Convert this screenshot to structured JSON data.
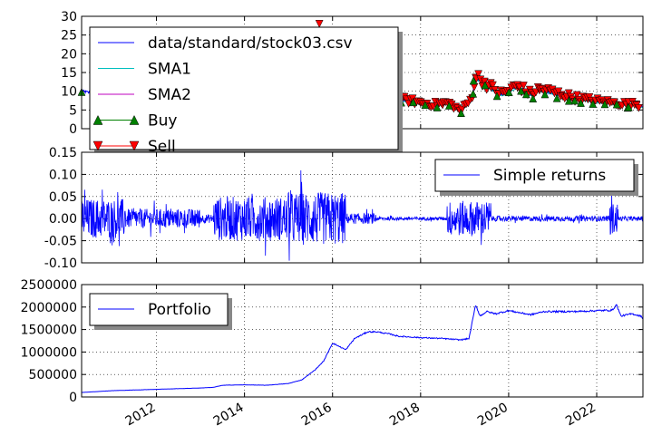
{
  "chart_data": [
    {
      "type": "line",
      "panel": "price",
      "ylim": [
        0,
        30
      ],
      "yticks": [
        "0",
        "5",
        "10",
        "15",
        "20",
        "25",
        "30"
      ],
      "grid": true,
      "legend_placement": "top-left",
      "colors": {
        "price": "#0000ff",
        "sma1": "#00bfbf",
        "sma2": "#bf00bf",
        "buy": "#008000",
        "sell": "#ff0000"
      },
      "series": [
        {
          "name": "data/standard/stock03.csv",
          "style": "line"
        },
        {
          "name": "SMA1",
          "style": "line"
        },
        {
          "name": "SMA2",
          "style": "line"
        },
        {
          "name": "Buy",
          "style": "triangle-up"
        },
        {
          "name": "Sell",
          "style": "triangle-down"
        }
      ],
      "price_points": [
        [
          2010.3,
          10.0
        ],
        [
          2010.5,
          9.6
        ],
        [
          2015.7,
          7.5
        ],
        [
          2016.0,
          7.6
        ],
        [
          2016.5,
          7.2
        ],
        [
          2017.0,
          8.0
        ],
        [
          2017.3,
          7.0
        ],
        [
          2017.6,
          7.5
        ],
        [
          2018.0,
          6.8
        ],
        [
          2018.3,
          6.2
        ],
        [
          2018.6,
          6.8
        ],
        [
          2018.8,
          5.5
        ],
        [
          2018.9,
          4.6
        ],
        [
          2019.0,
          5.8
        ],
        [
          2019.15,
          7.5
        ],
        [
          2019.25,
          13.5
        ],
        [
          2019.35,
          13.0
        ],
        [
          2019.5,
          11.5
        ],
        [
          2019.7,
          10.0
        ],
        [
          2019.85,
          9.0
        ],
        [
          2020.0,
          10.0
        ],
        [
          2020.2,
          11.2
        ],
        [
          2020.5,
          9.0
        ],
        [
          2020.7,
          10.3
        ],
        [
          2021.0,
          9.5
        ],
        [
          2021.5,
          8.0
        ],
        [
          2022.0,
          7.2
        ],
        [
          2022.5,
          6.5
        ],
        [
          2022.9,
          6.3
        ],
        [
          2023.05,
          5.8
        ]
      ],
      "sell_markers": [
        [
          2015.7,
          28.0
        ],
        [
          2015.8,
          6.5
        ],
        [
          2016.5,
          7.4
        ],
        [
          2017.0,
          8.0
        ],
        [
          2017.5,
          7.3
        ],
        [
          2018.0,
          6.8
        ],
        [
          2018.5,
          6.3
        ],
        [
          2019.25,
          13.6
        ],
        [
          2019.4,
          12.5
        ],
        [
          2019.6,
          11.0
        ],
        [
          2020.2,
          11.0
        ],
        [
          2020.7,
          10.2
        ],
        [
          2021.2,
          9.0
        ],
        [
          2021.8,
          7.8
        ],
        [
          2022.4,
          7.0
        ],
        [
          2022.9,
          6.5
        ]
      ],
      "buy_markers": [
        [
          2010.3,
          9.8
        ],
        [
          2019.2,
          12.8
        ],
        [
          2020.4,
          9.2
        ],
        [
          2021.5,
          7.5
        ],
        [
          2022.7,
          5.6
        ]
      ]
    },
    {
      "type": "line",
      "panel": "returns",
      "ylim": [
        -0.1,
        0.15
      ],
      "yticks": [
        "-0.10",
        "-0.05",
        "0.00",
        "0.05",
        "0.10",
        "0.15"
      ],
      "grid": true,
      "legend_placement": "top-right",
      "colors": {
        "returns": "#0000ff"
      },
      "series": [
        {
          "name": "Simple returns"
        }
      ],
      "volatility_regimes": [
        [
          2010.3,
          2011.3,
          0.045
        ],
        [
          2011.3,
          2013.0,
          0.022
        ],
        [
          2013.0,
          2013.3,
          0.01
        ],
        [
          2013.3,
          2015.0,
          0.05
        ],
        [
          2015.0,
          2016.3,
          0.06
        ],
        [
          2016.3,
          2017.0,
          0.012
        ],
        [
          2017.0,
          2018.6,
          0.004
        ],
        [
          2018.6,
          2019.6,
          0.04
        ],
        [
          2019.6,
          2022.3,
          0.006
        ],
        [
          2022.3,
          2022.5,
          0.035
        ],
        [
          2022.5,
          2023.05,
          0.005
        ]
      ]
    },
    {
      "type": "line",
      "panel": "portfolio",
      "ylim": [
        0,
        2500000
      ],
      "yticks": [
        "0",
        "500000",
        "1000000",
        "1500000",
        "2000000",
        "2500000"
      ],
      "xlim": [
        2010.3,
        2023.05
      ],
      "xticks": [
        "2012",
        "2014",
        "2016",
        "2018",
        "2020",
        "2022"
      ],
      "grid": true,
      "legend_placement": "top-left",
      "colors": {
        "portfolio": "#0000ff"
      },
      "series": [
        {
          "name": "Portfolio"
        }
      ],
      "points": [
        [
          2010.3,
          100000
        ],
        [
          2011.0,
          140000
        ],
        [
          2012.0,
          170000
        ],
        [
          2013.0,
          200000
        ],
        [
          2013.3,
          215000
        ],
        [
          2013.5,
          260000
        ],
        [
          2014.0,
          270000
        ],
        [
          2014.5,
          260000
        ],
        [
          2015.0,
          300000
        ],
        [
          2015.3,
          380000
        ],
        [
          2015.6,
          600000
        ],
        [
          2015.8,
          800000
        ],
        [
          2016.0,
          1200000
        ],
        [
          2016.3,
          1050000
        ],
        [
          2016.5,
          1300000
        ],
        [
          2016.8,
          1450000
        ],
        [
          2017.0,
          1450000
        ],
        [
          2017.3,
          1400000
        ],
        [
          2017.5,
          1350000
        ],
        [
          2018.0,
          1320000
        ],
        [
          2018.5,
          1300000
        ],
        [
          2018.9,
          1270000
        ],
        [
          2019.1,
          1300000
        ],
        [
          2019.25,
          2050000
        ],
        [
          2019.35,
          1800000
        ],
        [
          2019.5,
          1900000
        ],
        [
          2019.7,
          1850000
        ],
        [
          2020.0,
          1920000
        ],
        [
          2020.5,
          1830000
        ],
        [
          2020.8,
          1900000
        ],
        [
          2021.0,
          1900000
        ],
        [
          2021.5,
          1900000
        ],
        [
          2022.0,
          1920000
        ],
        [
          2022.35,
          1930000
        ],
        [
          2022.45,
          2050000
        ],
        [
          2022.55,
          1800000
        ],
        [
          2022.8,
          1850000
        ],
        [
          2023.0,
          1800000
        ],
        [
          2023.05,
          1750000
        ]
      ]
    }
  ]
}
